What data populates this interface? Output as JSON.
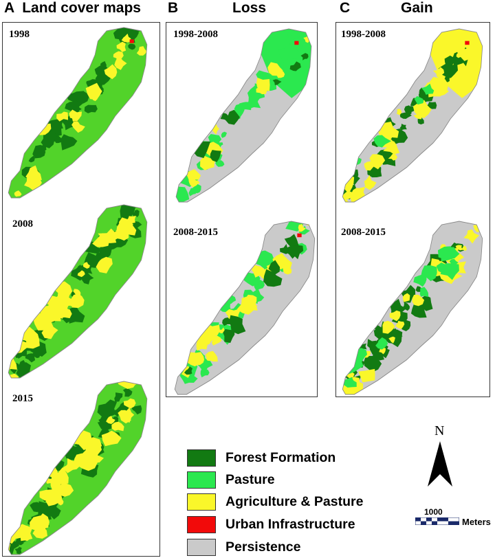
{
  "panels": [
    {
      "letter": "A",
      "title": "Land cover maps",
      "maps": [
        "1998",
        "2008",
        "2015"
      ]
    },
    {
      "letter": "B",
      "title": "Loss",
      "maps": [
        "1998-2008",
        "2008-2015"
      ]
    },
    {
      "letter": "C",
      "title": "Gain",
      "maps": [
        "1998-2008",
        "2008-2015"
      ]
    }
  ],
  "legend": [
    {
      "label": "Forest Formation",
      "color": "#127A12"
    },
    {
      "label": "Pasture",
      "color": "#2BE84F"
    },
    {
      "label": "Agriculture & Pasture",
      "color": "#FAF72A"
    },
    {
      "label": "Urban Infrastructure",
      "color": "#F20A0A"
    },
    {
      "label": "Persistence",
      "color": "#CACACA"
    }
  ],
  "north_arrow": {
    "label": "N"
  },
  "scale_bar": {
    "value": "1000",
    "unit": "Meters"
  },
  "colors": {
    "forest": "#127A12",
    "pasture": "#2BE84F",
    "pasture_a": "#52D32A",
    "agriculture": "#FAF72A",
    "urban": "#F20A0A",
    "persistence": "#CACACA"
  }
}
